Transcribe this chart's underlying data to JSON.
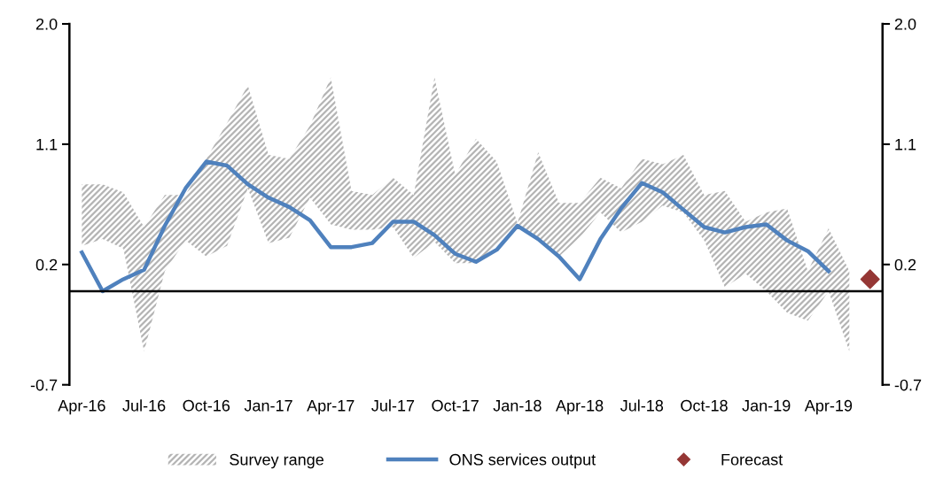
{
  "chart_data": {
    "type": "line",
    "categories": [
      "Apr-16",
      null,
      null,
      "Jul-16",
      null,
      null,
      "Oct-16",
      null,
      null,
      "Jan-17",
      null,
      null,
      "Apr-17",
      null,
      null,
      "Jul-17",
      null,
      null,
      "Oct-17",
      null,
      null,
      "Jan-18",
      null,
      null,
      "Apr-18",
      null,
      null,
      "Jul-18",
      null,
      null,
      "Oct-18",
      null,
      null,
      "Jan-19",
      null,
      null,
      "Apr-19",
      null,
      null
    ],
    "series": [
      {
        "name": "Survey range",
        "type": "area",
        "color": "#b4b4b4",
        "values": [
          null,
          null,
          null,
          null,
          null,
          null,
          null,
          null,
          null,
          null,
          null,
          null,
          null,
          null,
          null,
          null,
          null,
          null,
          null,
          null,
          null,
          null,
          null,
          null,
          null,
          null,
          null,
          null,
          null,
          null,
          null,
          null,
          null,
          null,
          null,
          null,
          null,
          null,
          null
        ],
        "lower": [
          0.34,
          0.39,
          0.32,
          -0.45,
          0.15,
          0.38,
          0.26,
          0.34,
          0.77,
          0.36,
          0.4,
          0.7,
          0.5,
          0.46,
          0.46,
          0.48,
          0.25,
          0.37,
          0.21,
          0.21,
          0.34,
          0.5,
          0.39,
          0.26,
          0.4,
          0.59,
          0.44,
          0.52,
          0.64,
          0.59,
          0.38,
          0.03,
          0.13,
          0.0,
          -0.16,
          -0.22,
          0.0,
          -0.45,
          null
        ],
        "upper": [
          0.8,
          0.8,
          0.74,
          0.48,
          0.72,
          0.72,
          0.99,
          1.26,
          1.54,
          1.02,
          0.99,
          1.24,
          1.6,
          0.75,
          0.72,
          0.85,
          0.72,
          1.6,
          0.87,
          1.14,
          0.97,
          0.51,
          1.04,
          0.66,
          0.66,
          0.85,
          0.77,
          0.99,
          0.95,
          1.02,
          0.72,
          0.75,
          0.52,
          0.59,
          0.62,
          0.15,
          0.47,
          0.15,
          null
        ]
      },
      {
        "name": "ONS services output",
        "color": "#4f81bd",
        "values": [
          0.29,
          0.0,
          0.09,
          0.16,
          0.49,
          0.77,
          0.97,
          0.94,
          0.8,
          0.7,
          0.63,
          0.53,
          0.33,
          0.33,
          0.36,
          0.52,
          0.52,
          0.42,
          0.28,
          0.22,
          0.31,
          0.49,
          0.39,
          0.26,
          0.09,
          0.39,
          0.62,
          0.81,
          0.74,
          0.61,
          0.48,
          0.44,
          0.48,
          0.5,
          0.38,
          0.3,
          0.15,
          null,
          null
        ]
      },
      {
        "name": "Forecast",
        "type": "scatter",
        "color": "#953735",
        "marker": "diamond",
        "values": [
          null,
          null,
          null,
          null,
          null,
          null,
          null,
          null,
          null,
          null,
          null,
          null,
          null,
          null,
          null,
          null,
          null,
          null,
          null,
          null,
          null,
          null,
          null,
          null,
          null,
          null,
          null,
          null,
          null,
          null,
          null,
          null,
          null,
          null,
          null,
          null,
          null,
          null,
          0.09
        ]
      }
    ],
    "ylim": [
      -0.7,
      2.0
    ],
    "yticks": [
      -0.7,
      0.2,
      1.1,
      {
        "value": 2.0,
        "label": "2.0"
      }
    ],
    "y2lim": [
      -0.7,
      2.0
    ],
    "y2ticks": [
      -0.7,
      0.2,
      1.1,
      {
        "value": 2.0,
        "label": "2.0"
      }
    ],
    "ref_lines": [
      {
        "axis": "y",
        "value": 0,
        "label": null,
        "color": "#000000"
      }
    ],
    "grid": false,
    "legend": "bottom"
  }
}
